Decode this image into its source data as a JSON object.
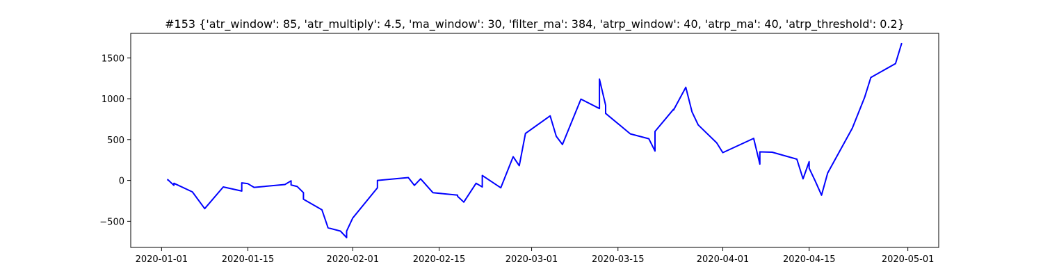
{
  "chart_data": {
    "type": "line",
    "title": "#153 {'atr_window': 85, 'atr_multiply': 4.5, 'ma_window': 30, 'filter_ma': 384, 'atrp_window': 40, 'atrp_ma': 40, 'atrp_threshold': 0.2}",
    "xlabel": "",
    "ylabel": "",
    "x_type": "date",
    "xlim": [
      "2019-12-27",
      "2020-05-06"
    ],
    "ylim": [
      -820,
      1800
    ],
    "grid": false,
    "line_color": "#0000ff",
    "x_ticks": [
      "2020-01-01",
      "2020-01-15",
      "2020-02-01",
      "2020-02-15",
      "2020-03-01",
      "2020-03-15",
      "2020-04-01",
      "2020-04-15",
      "2020-05-01"
    ],
    "y_ticks": [
      -500,
      0,
      500,
      1000,
      1500
    ],
    "series": [
      {
        "points": [
          [
            "2020-01-02",
            0
          ],
          [
            "2020-01-02",
            10
          ],
          [
            "2020-01-03",
            -60
          ],
          [
            "2020-01-03",
            -35
          ],
          [
            "2020-01-06",
            -140
          ],
          [
            "2020-01-08",
            -345
          ],
          [
            "2020-01-11",
            -80
          ],
          [
            "2020-01-14",
            -130
          ],
          [
            "2020-01-14",
            -30
          ],
          [
            "2020-01-15",
            -40
          ],
          [
            "2020-01-16",
            -85
          ],
          [
            "2020-01-21",
            -50
          ],
          [
            "2020-01-22",
            -5
          ],
          [
            "2020-01-22",
            -55
          ],
          [
            "2020-01-23",
            -75
          ],
          [
            "2020-01-24",
            -150
          ],
          [
            "2020-01-24",
            -230
          ],
          [
            "2020-01-27",
            -360
          ],
          [
            "2020-01-28",
            -580
          ],
          [
            "2020-01-30",
            -620
          ],
          [
            "2020-01-31",
            -700
          ],
          [
            "2020-01-31",
            -620
          ],
          [
            "2020-02-01",
            -460
          ],
          [
            "2020-02-05",
            -90
          ],
          [
            "2020-02-05",
            0
          ],
          [
            "2020-02-10",
            35
          ],
          [
            "2020-02-11",
            -60
          ],
          [
            "2020-02-12",
            20
          ],
          [
            "2020-02-14",
            -150
          ],
          [
            "2020-02-18",
            -180
          ],
          [
            "2020-02-18",
            -195
          ],
          [
            "2020-02-19",
            -265
          ],
          [
            "2020-02-21",
            -35
          ],
          [
            "2020-02-22",
            -80
          ],
          [
            "2020-02-22",
            60
          ],
          [
            "2020-02-25",
            -90
          ],
          [
            "2020-02-27",
            290
          ],
          [
            "2020-02-28",
            180
          ],
          [
            "2020-02-29",
            575
          ],
          [
            "2020-03-04",
            790
          ],
          [
            "2020-03-05",
            540
          ],
          [
            "2020-03-06",
            440
          ],
          [
            "2020-03-09",
            995
          ],
          [
            "2020-03-12",
            880
          ],
          [
            "2020-03-12",
            1240
          ],
          [
            "2020-03-13",
            920
          ],
          [
            "2020-03-13",
            820
          ],
          [
            "2020-03-17",
            570
          ],
          [
            "2020-03-20",
            510
          ],
          [
            "2020-03-21",
            360
          ],
          [
            "2020-03-21",
            600
          ],
          [
            "2020-03-24",
            870
          ],
          [
            "2020-03-24",
            860
          ],
          [
            "2020-03-26",
            1140
          ],
          [
            "2020-03-27",
            840
          ],
          [
            "2020-03-28",
            680
          ],
          [
            "2020-03-31",
            460
          ],
          [
            "2020-04-01",
            340
          ],
          [
            "2020-04-06",
            515
          ],
          [
            "2020-04-07",
            200
          ],
          [
            "2020-04-07",
            350
          ],
          [
            "2020-04-09",
            345
          ],
          [
            "2020-04-13",
            260
          ],
          [
            "2020-04-14",
            20
          ],
          [
            "2020-04-15",
            230
          ],
          [
            "2020-04-15",
            150
          ],
          [
            "2020-04-16",
            -10
          ],
          [
            "2020-04-17",
            -180
          ],
          [
            "2020-04-18",
            90
          ],
          [
            "2020-04-22",
            640
          ],
          [
            "2020-04-24",
            1020
          ],
          [
            "2020-04-25",
            1260
          ],
          [
            "2020-04-29",
            1430
          ],
          [
            "2020-04-30",
            1680
          ]
        ]
      }
    ]
  }
}
